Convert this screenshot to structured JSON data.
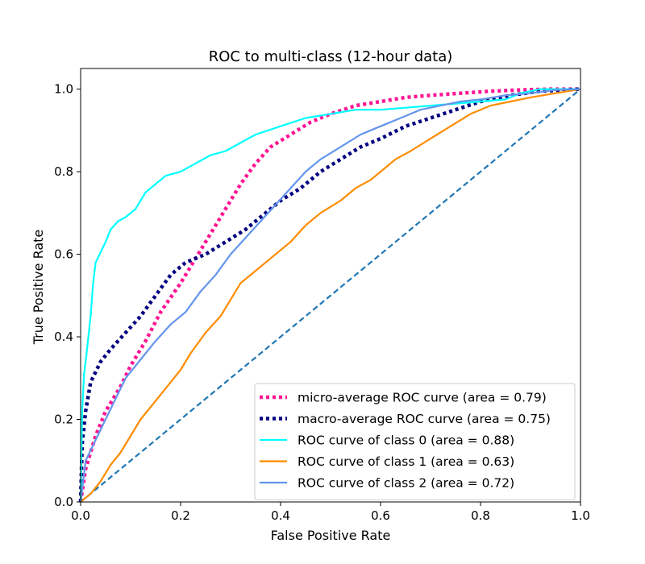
{
  "chart_data": {
    "type": "line",
    "title": "ROC to multi-class (12-hour data)",
    "xlabel": "False Positive Rate",
    "ylabel": "True Positive Rate",
    "xlim": [
      0.0,
      1.0
    ],
    "ylim": [
      0.0,
      1.05
    ],
    "xticks": [
      "0.0",
      "0.2",
      "0.4",
      "0.6",
      "0.8",
      "1.0"
    ],
    "yticks": [
      "0.0",
      "0.2",
      "0.4",
      "0.6",
      "0.8",
      "1.0"
    ],
    "grid": false,
    "legend_position": "lower-right",
    "series": [
      {
        "name": "micro-average ROC curve (area = 0.79)",
        "color": "#ff1493",
        "style": "dotted",
        "x": [
          0,
          0.01,
          0.03,
          0.05,
          0.08,
          0.1,
          0.13,
          0.16,
          0.2,
          0.23,
          0.26,
          0.29,
          0.32,
          0.35,
          0.38,
          0.42,
          0.46,
          0.5,
          0.55,
          0.6,
          0.65,
          0.7,
          0.76,
          0.82,
          0.88,
          0.94,
          1.0
        ],
        "y": [
          0,
          0.08,
          0.16,
          0.22,
          0.28,
          0.33,
          0.39,
          0.46,
          0.53,
          0.59,
          0.65,
          0.71,
          0.77,
          0.82,
          0.86,
          0.89,
          0.92,
          0.94,
          0.96,
          0.97,
          0.98,
          0.985,
          0.99,
          0.995,
          0.998,
          1.0,
          1.0
        ]
      },
      {
        "name": "macro-average ROC curve (area = 0.75)",
        "color": "#000080",
        "style": "dotted",
        "x": [
          0,
          0.003,
          0.01,
          0.02,
          0.04,
          0.06,
          0.09,
          0.12,
          0.15,
          0.18,
          0.21,
          0.25,
          0.29,
          0.33,
          0.37,
          0.4,
          0.44,
          0.48,
          0.52,
          0.56,
          0.6,
          0.65,
          0.7,
          0.75,
          0.8,
          0.86,
          0.92,
          1.0
        ],
        "y": [
          0,
          0.14,
          0.22,
          0.29,
          0.34,
          0.37,
          0.41,
          0.45,
          0.5,
          0.55,
          0.58,
          0.6,
          0.63,
          0.66,
          0.7,
          0.73,
          0.76,
          0.8,
          0.83,
          0.86,
          0.88,
          0.91,
          0.93,
          0.95,
          0.97,
          0.985,
          0.995,
          1.0
        ]
      },
      {
        "name": "ROC curve of class 0 (area = 0.88)",
        "color": "#00ffff",
        "style": "solid",
        "x": [
          0,
          0.003,
          0.007,
          0.012,
          0.02,
          0.025,
          0.03,
          0.038,
          0.05,
          0.06,
          0.075,
          0.09,
          0.11,
          0.13,
          0.15,
          0.17,
          0.2,
          0.23,
          0.26,
          0.29,
          0.32,
          0.35,
          0.4,
          0.45,
          0.5,
          0.55,
          0.6,
          0.65,
          0.7,
          0.75,
          0.8,
          0.85,
          0.88,
          0.92,
          0.96,
          1.0
        ],
        "y": [
          0,
          0.22,
          0.31,
          0.36,
          0.45,
          0.53,
          0.58,
          0.6,
          0.63,
          0.66,
          0.68,
          0.69,
          0.71,
          0.75,
          0.77,
          0.79,
          0.8,
          0.82,
          0.84,
          0.85,
          0.87,
          0.89,
          0.91,
          0.93,
          0.94,
          0.95,
          0.95,
          0.955,
          0.96,
          0.965,
          0.97,
          0.975,
          0.99,
          1.0,
          1.0,
          1.0
        ]
      },
      {
        "name": "ROC curve of class 1 (area = 0.63)",
        "color": "#ff8c00",
        "style": "solid",
        "x": [
          0,
          0.02,
          0.04,
          0.06,
          0.08,
          0.1,
          0.12,
          0.14,
          0.16,
          0.18,
          0.2,
          0.22,
          0.25,
          0.28,
          0.3,
          0.32,
          0.35,
          0.38,
          0.42,
          0.45,
          0.48,
          0.52,
          0.55,
          0.58,
          0.6,
          0.63,
          0.66,
          0.7,
          0.74,
          0.78,
          0.82,
          0.86,
          0.9,
          0.95,
          1.0
        ],
        "y": [
          0,
          0.02,
          0.05,
          0.09,
          0.12,
          0.16,
          0.2,
          0.23,
          0.26,
          0.29,
          0.32,
          0.36,
          0.41,
          0.45,
          0.49,
          0.53,
          0.56,
          0.59,
          0.63,
          0.67,
          0.7,
          0.73,
          0.76,
          0.78,
          0.8,
          0.83,
          0.85,
          0.88,
          0.91,
          0.94,
          0.96,
          0.97,
          0.98,
          0.99,
          1.0
        ]
      },
      {
        "name": "ROC curve of class 2 (area = 0.72)",
        "color": "#6495ed",
        "style": "solid",
        "x": [
          0,
          0.01,
          0.03,
          0.05,
          0.07,
          0.09,
          0.11,
          0.13,
          0.15,
          0.18,
          0.21,
          0.24,
          0.27,
          0.3,
          0.33,
          0.36,
          0.39,
          0.42,
          0.45,
          0.48,
          0.52,
          0.56,
          0.6,
          0.64,
          0.68,
          0.72,
          0.76,
          0.8,
          0.85,
          0.9,
          0.95,
          1.0
        ],
        "y": [
          0,
          0.1,
          0.15,
          0.2,
          0.25,
          0.3,
          0.33,
          0.36,
          0.39,
          0.43,
          0.46,
          0.51,
          0.55,
          0.6,
          0.64,
          0.68,
          0.72,
          0.76,
          0.8,
          0.83,
          0.86,
          0.89,
          0.91,
          0.93,
          0.95,
          0.96,
          0.97,
          0.975,
          0.985,
          0.99,
          0.998,
          1.0
        ]
      },
      {
        "name": "",
        "color": "#1f77b4",
        "style": "dashed",
        "x": [
          0,
          1
        ],
        "y": [
          0,
          1
        ]
      }
    ],
    "legend": [
      {
        "label": "micro-average ROC curve (area = 0.79)",
        "color": "#ff1493",
        "style": "dotted"
      },
      {
        "label": "macro-average ROC curve (area = 0.75)",
        "color": "#000080",
        "style": "dotted"
      },
      {
        "label": "ROC curve of class 0 (area = 0.88)",
        "color": "#00ffff",
        "style": "solid"
      },
      {
        "label": "ROC curve of class 1 (area = 0.63)",
        "color": "#ff8c00",
        "style": "solid"
      },
      {
        "label": "ROC curve of class 2 (area = 0.72)",
        "color": "#6495ed",
        "style": "solid"
      }
    ]
  }
}
